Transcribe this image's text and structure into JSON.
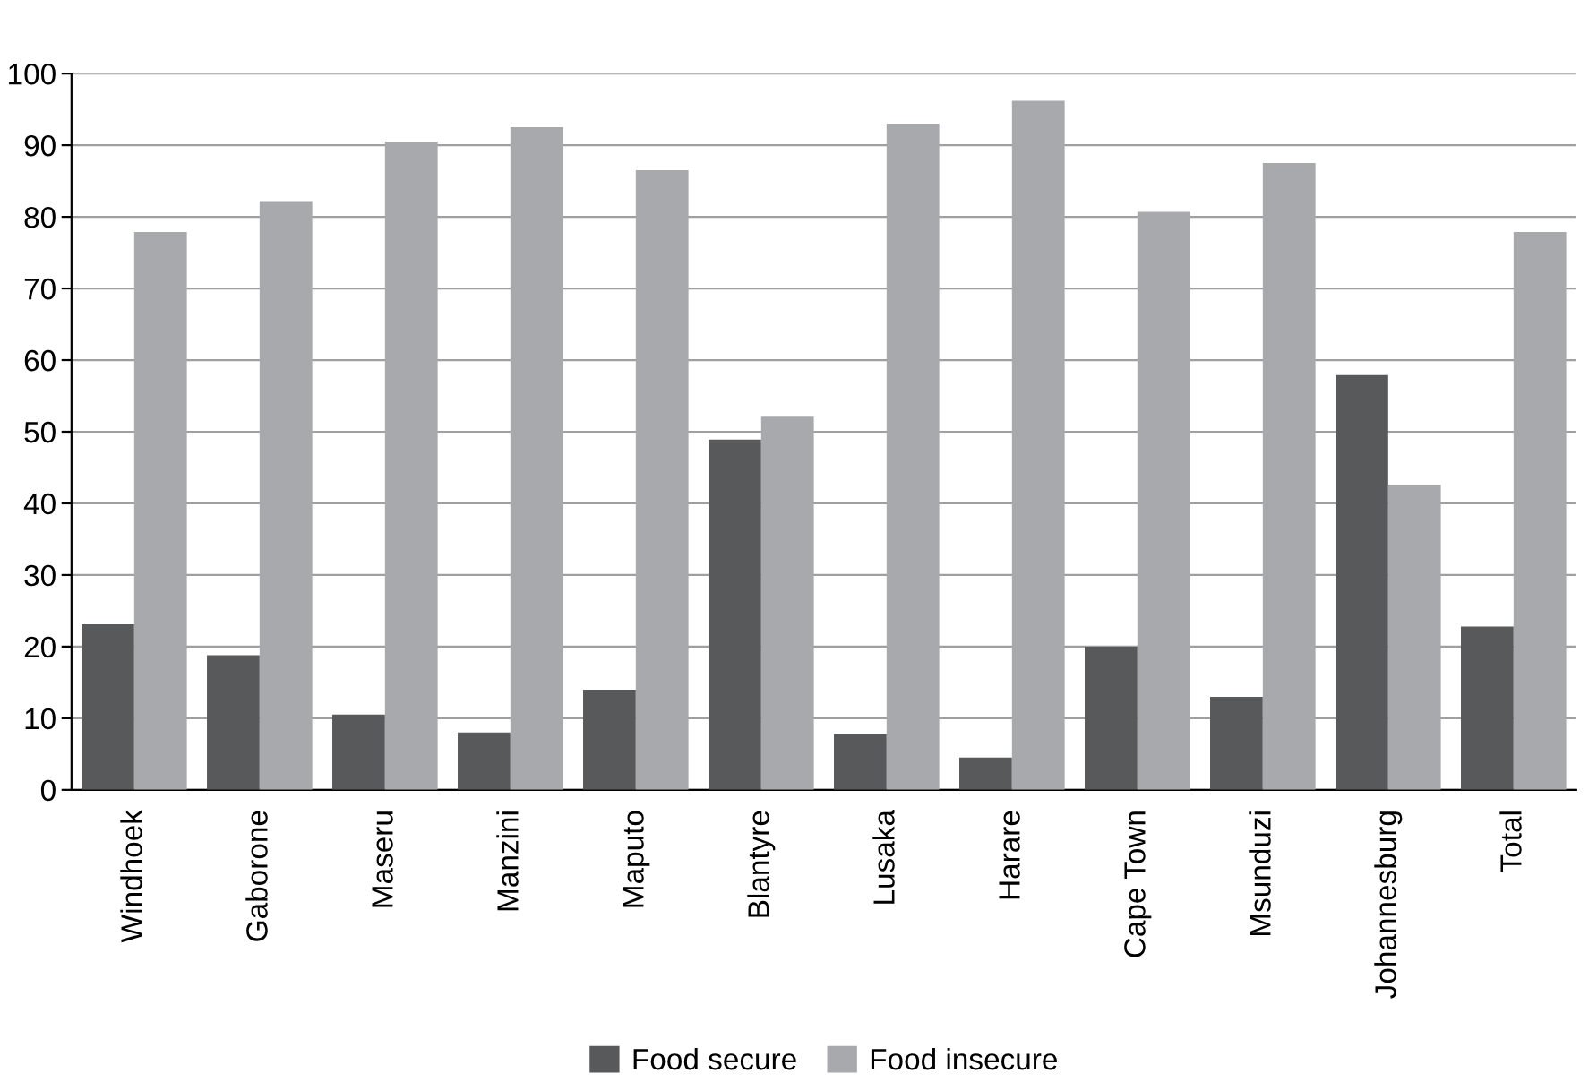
{
  "chart_data": {
    "type": "bar",
    "categories": [
      "Windhoek",
      "Gaborone",
      "Maseru",
      "Manzini",
      "Maputo",
      "Blantyre",
      "Lusaka",
      "Harare",
      "Cape Town",
      "Msunduzi",
      "Johannesburg",
      "Total"
    ],
    "series": [
      {
        "name": "Food secure",
        "color": "#58595b",
        "values": [
          23.1,
          18.8,
          10.5,
          8,
          14,
          48.9,
          7.8,
          4.5,
          20,
          13,
          57.9,
          22.8
        ]
      },
      {
        "name": "Food insecure",
        "color": "#a7a9ac",
        "values": [
          77.9,
          82.2,
          90.5,
          92.5,
          86.5,
          52.1,
          93,
          96.2,
          80.7,
          87.5,
          42.6,
          77.9
        ]
      }
    ],
    "ylim": [
      0,
      100
    ],
    "yticks": [
      0,
      10,
      20,
      30,
      40,
      50,
      60,
      70,
      80,
      90,
      100
    ],
    "grid": "y",
    "legend": "bottom"
  }
}
